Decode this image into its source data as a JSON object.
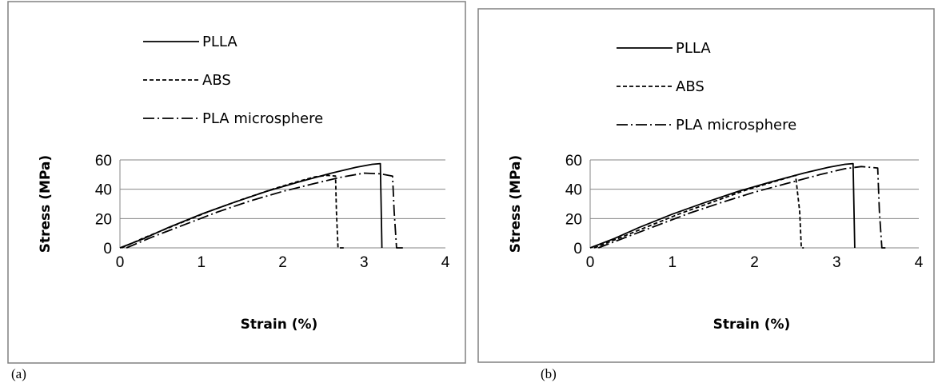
{
  "chart_data": [
    {
      "type": "line",
      "panel_label": "(a)",
      "xlabel": "Strain (%)",
      "ylabel": "Stress (MPa)",
      "xlim": [
        0,
        4
      ],
      "ylim": [
        0,
        60
      ],
      "xticks": [
        0,
        1,
        2,
        3,
        4
      ],
      "yticks": [
        0,
        20,
        40,
        60
      ],
      "grid": "horizontal",
      "legend_position": "top",
      "series": [
        {
          "name": "PLLA",
          "style": "solid",
          "x": [
            0.0,
            0.3,
            0.6,
            1.0,
            1.4,
            1.8,
            2.2,
            2.6,
            2.9,
            3.1,
            3.2,
            3.21,
            3.22
          ],
          "y": [
            0,
            6.5,
            14,
            23,
            31,
            38.5,
            45,
            51,
            55,
            57,
            57.5,
            30,
            0
          ]
        },
        {
          "name": "ABS",
          "style": "dashed",
          "x": [
            0.02,
            0.3,
            0.7,
            1.1,
            1.5,
            1.9,
            2.2,
            2.4,
            2.55,
            2.65,
            2.66,
            2.68,
            2.75
          ],
          "y": [
            0,
            7,
            16,
            25,
            33,
            40.5,
            45.5,
            48.5,
            49.5,
            49,
            25,
            0,
            0
          ]
        },
        {
          "name": "PLA microsphere",
          "style": "dashdot",
          "x": [
            0.08,
            0.4,
            0.8,
            1.2,
            1.6,
            2.0,
            2.4,
            2.7,
            3.0,
            3.2,
            3.35,
            3.37,
            3.4,
            3.5
          ],
          "y": [
            0,
            7.5,
            16,
            24.5,
            32,
            38.5,
            44,
            48,
            51,
            50.5,
            49,
            25,
            0,
            0
          ]
        }
      ]
    },
    {
      "type": "line",
      "panel_label": "(b)",
      "xlabel": "Strain (%)",
      "ylabel": "Stress (MPa)",
      "xlim": [
        0,
        4
      ],
      "ylim": [
        0,
        60
      ],
      "xticks": [
        0,
        1,
        2,
        3,
        4
      ],
      "yticks": [
        0,
        20,
        40,
        60
      ],
      "grid": "horizontal",
      "legend_position": "top",
      "series": [
        {
          "name": "PLLA",
          "style": "solid",
          "x": [
            0.0,
            0.3,
            0.6,
            1.0,
            1.4,
            1.8,
            2.2,
            2.6,
            2.9,
            3.1,
            3.2,
            3.21,
            3.22
          ],
          "y": [
            0,
            6.5,
            14,
            23,
            31,
            38.5,
            45,
            51,
            55,
            57,
            57.5,
            30,
            0
          ]
        },
        {
          "name": "ABS",
          "style": "dashed",
          "x": [
            0.05,
            0.3,
            0.7,
            1.1,
            1.5,
            1.9,
            2.2,
            2.5,
            2.55,
            2.57,
            2.6
          ],
          "y": [
            0,
            5.5,
            14.5,
            23.5,
            31.5,
            39.5,
            44.5,
            49.5,
            25,
            0,
            0
          ]
        },
        {
          "name": "PLA microsphere",
          "style": "dashdot",
          "x": [
            0.1,
            0.4,
            0.8,
            1.2,
            1.6,
            2.0,
            2.4,
            2.8,
            3.1,
            3.3,
            3.5,
            3.52,
            3.55,
            3.6
          ],
          "y": [
            0,
            6.5,
            15,
            23.5,
            31,
            38,
            44,
            50,
            54,
            55.5,
            54.5,
            25,
            0,
            0
          ]
        }
      ]
    }
  ]
}
